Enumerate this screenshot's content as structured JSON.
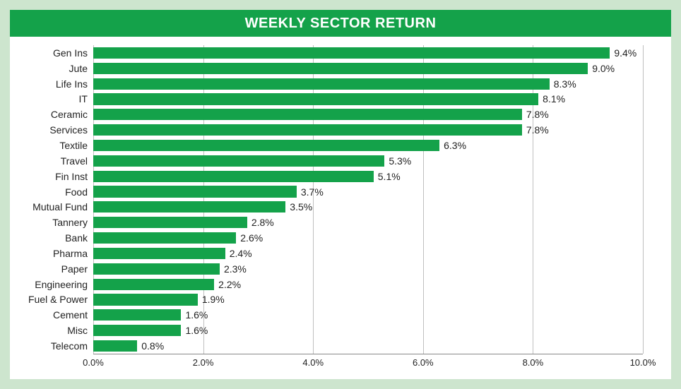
{
  "chart": {
    "type": "bar-horizontal",
    "title": "WEEKLY SECTOR RETURN",
    "background_outer": "#cde5ce",
    "background_card": "#ffffff",
    "header_bg": "#14a24a",
    "header_color": "#ffffff",
    "bar_color": "#14a24a",
    "grid_color": "#bfbfbf",
    "text_color": "#222222",
    "xmin": 0.0,
    "xmax": 10.0,
    "xtick_step": 2.0,
    "xtick_format_suffix": "%",
    "xticks": [
      "0.0%",
      "2.0%",
      "4.0%",
      "6.0%",
      "8.0%",
      "10.0%"
    ],
    "label_fontsize": 14,
    "tick_fontsize": 13,
    "title_fontsize": 20,
    "bar_height_ratio": 0.74,
    "data": [
      {
        "label": "Gen Ins",
        "value": 9.4,
        "display": "9.4%"
      },
      {
        "label": "Jute",
        "value": 9.0,
        "display": "9.0%"
      },
      {
        "label": "Life Ins",
        "value": 8.3,
        "display": "8.3%"
      },
      {
        "label": "IT",
        "value": 8.1,
        "display": "8.1%"
      },
      {
        "label": "Ceramic",
        "value": 7.8,
        "display": "7.8%"
      },
      {
        "label": "Services",
        "value": 7.8,
        "display": "7.8%"
      },
      {
        "label": "Textile",
        "value": 6.3,
        "display": "6.3%"
      },
      {
        "label": "Travel",
        "value": 5.3,
        "display": "5.3%"
      },
      {
        "label": "Fin Inst",
        "value": 5.1,
        "display": "5.1%"
      },
      {
        "label": "Food",
        "value": 3.7,
        "display": "3.7%"
      },
      {
        "label": "Mutual Fund",
        "value": 3.5,
        "display": "3.5%"
      },
      {
        "label": "Tannery",
        "value": 2.8,
        "display": "2.8%"
      },
      {
        "label": "Bank",
        "value": 2.6,
        "display": "2.6%"
      },
      {
        "label": "Pharma",
        "value": 2.4,
        "display": "2.4%"
      },
      {
        "label": "Paper",
        "value": 2.3,
        "display": "2.3%"
      },
      {
        "label": "Engineering",
        "value": 2.2,
        "display": "2.2%"
      },
      {
        "label": "Fuel & Power",
        "value": 1.9,
        "display": "1.9%"
      },
      {
        "label": "Cement",
        "value": 1.6,
        "display": "1.6%"
      },
      {
        "label": "Misc",
        "value": 1.6,
        "display": "1.6%"
      },
      {
        "label": "Telecom",
        "value": 0.8,
        "display": "0.8%"
      }
    ]
  }
}
